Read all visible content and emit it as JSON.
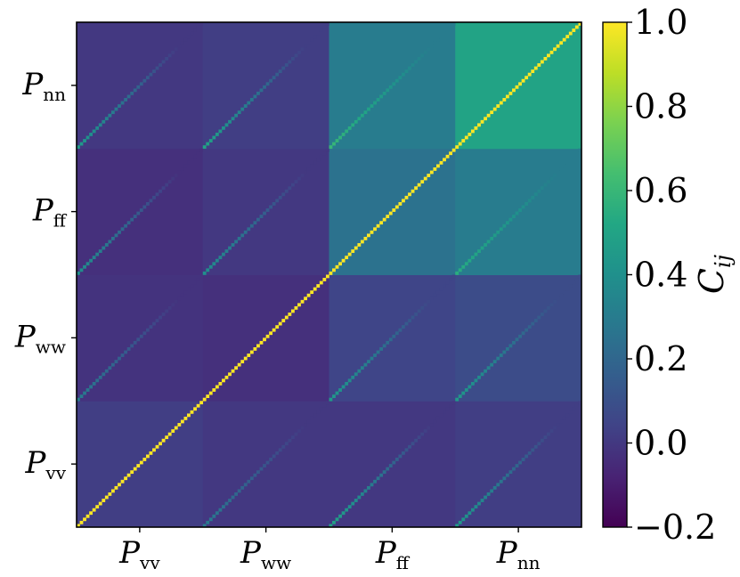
{
  "chart_data": {
    "type": "heatmap",
    "title": "",
    "blocks": [
      "P_vv",
      "P_ww",
      "P_ff",
      "P_nn"
    ],
    "x_tick_labels": [
      {
        "main": "P",
        "sub": "vv"
      },
      {
        "main": "P",
        "sub": "ww"
      },
      {
        "main": "P",
        "sub": "ff"
      },
      {
        "main": "P",
        "sub": "nn"
      }
    ],
    "y_tick_labels": [
      {
        "main": "P",
        "sub": "vv"
      },
      {
        "main": "P",
        "sub": "ww"
      },
      {
        "main": "P",
        "sub": "ff"
      },
      {
        "main": "P",
        "sub": "nn"
      }
    ],
    "y_order": "bottom-to-top",
    "n_bins_per_block": 40,
    "colorbar": {
      "label_main": "C",
      "label_sub": "ij",
      "colormap": "viridis",
      "range": [
        -0.2,
        1.0
      ],
      "ticks": [
        -0.2,
        0.0,
        0.2,
        0.4,
        0.6,
        0.8,
        1.0
      ],
      "tick_labels": [
        "−0.2",
        "0.0",
        "0.2",
        "0.4",
        "0.6",
        "0.8",
        "1.0"
      ]
    },
    "diagonal_value": 1.0,
    "block_values": [
      {
        "row": "P_vv",
        "col": "P_vv",
        "background": 0.02,
        "cross_diagonal": 1.0
      },
      {
        "row": "P_vv",
        "col": "P_ww",
        "background": 0.0,
        "cross_diagonal": 0.3
      },
      {
        "row": "P_vv",
        "col": "P_ff",
        "background": 0.0,
        "cross_diagonal": 0.5
      },
      {
        "row": "P_vv",
        "col": "P_nn",
        "background": 0.02,
        "cross_diagonal": 0.45
      },
      {
        "row": "P_ww",
        "col": "P_vv",
        "background": -0.02,
        "cross_diagonal": 0.3
      },
      {
        "row": "P_ww",
        "col": "P_ww",
        "background": -0.03,
        "cross_diagonal": 1.0
      },
      {
        "row": "P_ww",
        "col": "P_ff",
        "background": 0.05,
        "cross_diagonal": 0.45
      },
      {
        "row": "P_ww",
        "col": "P_nn",
        "background": 0.08,
        "cross_diagonal": 0.45
      },
      {
        "row": "P_ff",
        "col": "P_vv",
        "background": -0.03,
        "cross_diagonal": 0.4
      },
      {
        "row": "P_ff",
        "col": "P_ww",
        "background": 0.0,
        "cross_diagonal": 0.4
      },
      {
        "row": "P_ff",
        "col": "P_ff",
        "background": 0.25,
        "cross_diagonal": 1.0
      },
      {
        "row": "P_ff",
        "col": "P_nn",
        "background": 0.3,
        "cross_diagonal": 0.55
      },
      {
        "row": "P_nn",
        "col": "P_vv",
        "background": 0.0,
        "cross_diagonal": 0.45
      },
      {
        "row": "P_nn",
        "col": "P_ww",
        "background": 0.02,
        "cross_diagonal": 0.5
      },
      {
        "row": "P_nn",
        "col": "P_ff",
        "background": 0.3,
        "cross_diagonal": 0.6
      },
      {
        "row": "P_nn",
        "col": "P_nn",
        "background": 0.5,
        "cross_diagonal": 1.0
      }
    ]
  }
}
